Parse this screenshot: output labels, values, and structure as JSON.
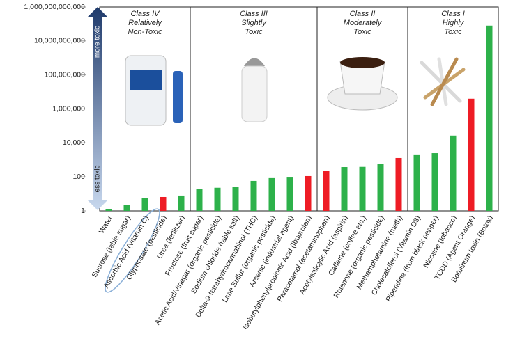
{
  "chart_data": {
    "type": "bar",
    "log_scale": true,
    "categories": [
      "Water",
      "Sucrose (table sugar)",
      "Ascorbic Acid (Vitamin C)",
      "Glyphosate (pesticide)",
      "Urea (fertilizer)",
      "Fructose (fruit sugar)",
      "Acetic Acid/Vinegar (organic pesticide)",
      "Sodium chloride (table salt)",
      "Delta-9-tetrahydrocannabinol (THC)",
      "Lime Sulfur (organic pesticide)",
      "Arsenic (industrial agent)",
      "Isobutylphenylpropionic Acid (Ibuprofen)",
      "Paracetamol (acetaminophen)",
      "Acetylsalicylic Acid (aspirin)",
      "Caffeine (coffee etc.)",
      "Rotenone (organic pesticide)",
      "Methamphetamine (meth)",
      "Cholecalciferol (Vitamin D3)",
      "Piperidine (from black pepper)",
      "Nicotine (tobacco)",
      "TCDD (Agent Orange)",
      "Botulinum toxin (Botox)"
    ],
    "values": [
      1.3,
      2.3,
      5.5,
      6.6,
      8,
      19,
      23,
      25,
      58,
      85,
      92,
      112,
      220,
      380,
      390,
      560,
      1300,
      2100,
      2500,
      27000,
      4000000,
      80000000000
    ],
    "colors": [
      "#2db14a",
      "#2db14a",
      "#2db14a",
      "#ee1c25",
      "#2db14a",
      "#2db14a",
      "#2db14a",
      "#2db14a",
      "#2db14a",
      "#2db14a",
      "#2db14a",
      "#ee1c25",
      "#ee1c25",
      "#2db14a",
      "#2db14a",
      "#2db14a",
      "#ee1c25",
      "#2db14a",
      "#2db14a",
      "#2db14a",
      "#ee1c25",
      "#2db14a"
    ],
    "ylim": [
      1,
      1000000000000
    ],
    "yticks": [
      1,
      100,
      {
        "value": 10000,
        "label": "10,000"
      },
      {
        "value": 1000000,
        "label": "1,000,000"
      },
      {
        "value": 100000000,
        "label": "100,000,000"
      },
      {
        "value": 10000000000,
        "label": "10,000,000,000"
      },
      {
        "value": 1000000000000,
        "label": "1,000,000,000,000"
      }
    ],
    "annotations": [
      "more toxic",
      "less toxic"
    ],
    "classes": [
      [
        "Class IV",
        "Relatively",
        "Non-Toxic"
      ],
      [
        "Class III",
        "Slightly",
        "Toxic"
      ],
      [
        "Class II",
        "Moderately",
        "Toxic"
      ],
      [
        "Class I",
        "Highly",
        "Toxic"
      ]
    ]
  }
}
